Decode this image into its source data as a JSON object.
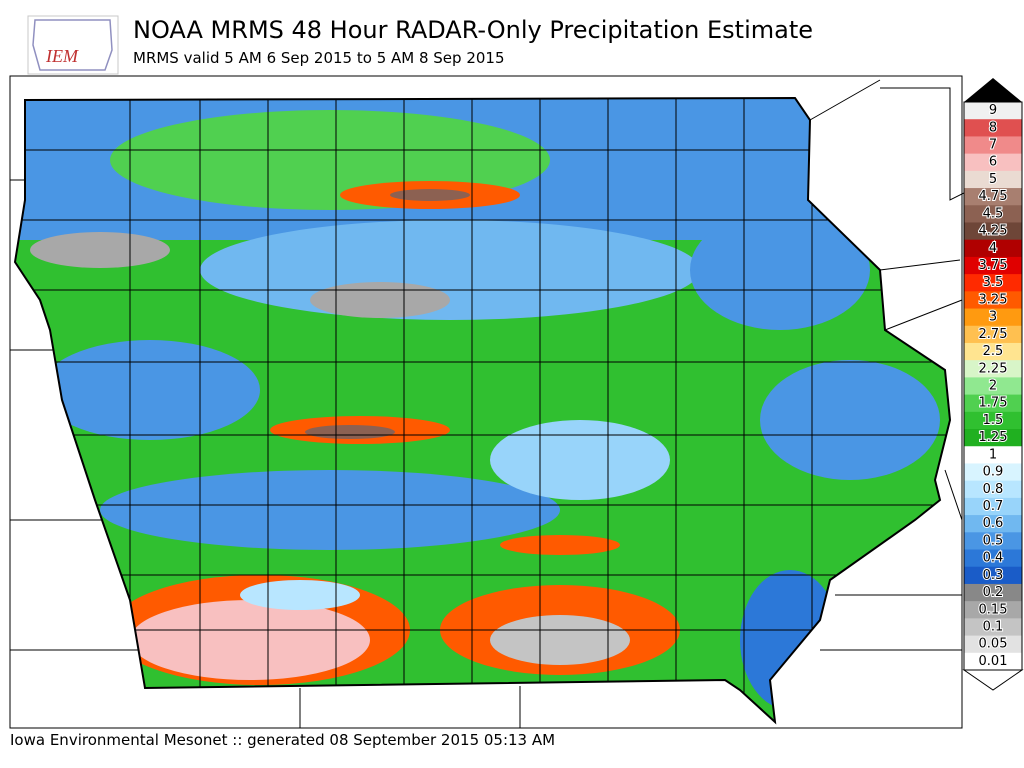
{
  "logo": {
    "text": "IEM"
  },
  "header": {
    "title": "NOAA MRMS 48 Hour RADAR-Only Precipitation Estimate",
    "subtitle": "MRMS valid 5 AM 6 Sep 2015 to 5 AM 8 Sep 2015"
  },
  "legend": {
    "items": [
      {
        "label": "9",
        "color": "#f0f0f0"
      },
      {
        "label": "8",
        "color": "#e05050"
      },
      {
        "label": "7",
        "color": "#f08a8a"
      },
      {
        "label": "6",
        "color": "#f8c0c0"
      },
      {
        "label": "5",
        "color": "#eadbd2"
      },
      {
        "label": "4.75",
        "color": "#a87f70"
      },
      {
        "label": "4.5",
        "color": "#8c6152"
      },
      {
        "label": "4.25",
        "color": "#6e4638"
      },
      {
        "label": "4",
        "color": "#b00000"
      },
      {
        "label": "3.75",
        "color": "#e00000"
      },
      {
        "label": "3.5",
        "color": "#ff2a00"
      },
      {
        "label": "3.25",
        "color": "#ff5a00"
      },
      {
        "label": "3",
        "color": "#ff9a10"
      },
      {
        "label": "2.75",
        "color": "#ffc050"
      },
      {
        "label": "2.5",
        "color": "#ffe490"
      },
      {
        "label": "2.25",
        "color": "#d8f5c8"
      },
      {
        "label": "2",
        "color": "#90e890"
      },
      {
        "label": "1.75",
        "color": "#50d050"
      },
      {
        "label": "1.5",
        "color": "#30c030"
      },
      {
        "label": "1.25",
        "color": "#20b020"
      },
      {
        "label": "1",
        "color": "#ffffff"
      },
      {
        "label": "0.9",
        "color": "#d8f4ff"
      },
      {
        "label": "0.8",
        "color": "#b8e6ff"
      },
      {
        "label": "0.7",
        "color": "#98d4fa"
      },
      {
        "label": "0.6",
        "color": "#70b8f0"
      },
      {
        "label": "0.5",
        "color": "#4a96e4"
      },
      {
        "label": "0.4",
        "color": "#2c78d8"
      },
      {
        "label": "0.3",
        "color": "#1a5cc8"
      },
      {
        "label": "0.2",
        "color": "#888888"
      },
      {
        "label": "0.15",
        "color": "#a8a8a8"
      },
      {
        "label": "0.1",
        "color": "#c4c4c4"
      },
      {
        "label": "0.05",
        "color": "#e2e2e2"
      },
      {
        "label": "0.01",
        "color": "#ffffff"
      }
    ]
  },
  "footer": {
    "text": "Iowa Environmental Mesonet :: generated 08 September 2015 05:13 AM"
  }
}
